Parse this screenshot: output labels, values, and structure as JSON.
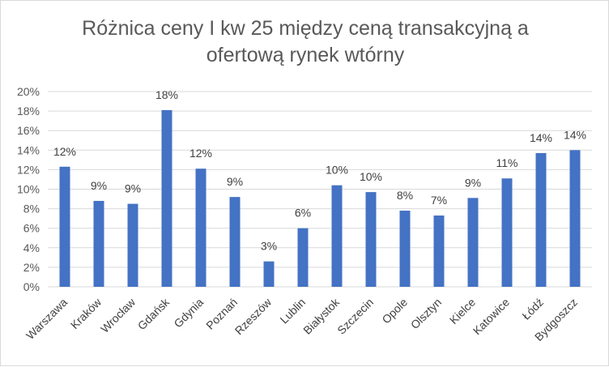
{
  "chart_data": {
    "type": "bar",
    "title_lines": [
      "Różnica ceny I kw 25 między ceną transakcyjną a",
      "ofertową rynek wtórny"
    ],
    "categories": [
      "Warszawa",
      "Kraków",
      "Wrocław",
      "Gdańsk",
      "Gdynia",
      "Poznań",
      "Rzeszów",
      "Lublin",
      "Białystok",
      "Szczecin",
      "Opole",
      "Olsztyn",
      "Kielce",
      "Katowice",
      "Łódź",
      "Bydgoszcz"
    ],
    "values": [
      12.3,
      8.8,
      8.5,
      18.1,
      12.1,
      9.2,
      2.6,
      6.0,
      10.4,
      9.7,
      7.8,
      7.3,
      9.1,
      11.1,
      13.7,
      14.0
    ],
    "data_labels": [
      "12%",
      "9%",
      "9%",
      "18%",
      "12%",
      "9%",
      "3%",
      "6%",
      "10%",
      "10%",
      "8%",
      "7%",
      "9%",
      "11%",
      "14%",
      "14%"
    ],
    "y_ticks": [
      "0%",
      "2%",
      "4%",
      "6%",
      "8%",
      "10%",
      "12%",
      "14%",
      "16%",
      "18%",
      "20%"
    ],
    "ylim": [
      0,
      20
    ],
    "grid": true,
    "legend": "none",
    "bar_color": "#4472c4",
    "grid_color": "#d9d9d9"
  }
}
